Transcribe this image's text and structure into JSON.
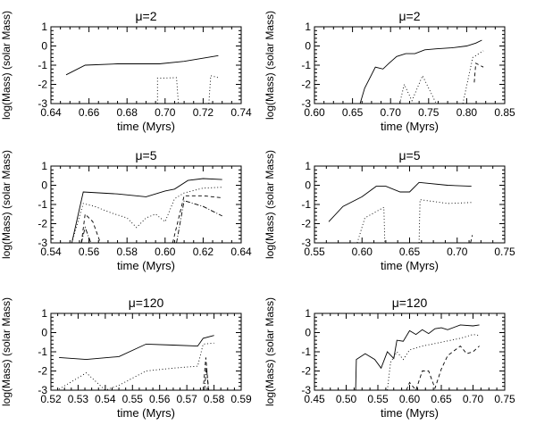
{
  "figure": {
    "background": "#ffffff",
    "line_color": "#000000"
  },
  "chart_data": [
    {
      "type": "line",
      "title": "μ=2",
      "xlabel": "time (Myrs)",
      "ylabel": "log(Mass)  (solar Mass)",
      "xlim": [
        0.64,
        0.74
      ],
      "ylim": [
        -3,
        1
      ],
      "xticks": [
        0.64,
        0.66,
        0.68,
        0.7,
        0.72,
        0.74
      ],
      "xticklabels": [
        "0.64",
        "0.66",
        "0.68",
        "0.70",
        "0.72",
        "0.74"
      ],
      "yticks": [
        -3,
        -2,
        -1,
        0,
        1
      ],
      "yticklabels": [
        "-3",
        "-2",
        "-1",
        "0",
        "1"
      ],
      "series": [
        {
          "name": "solid",
          "dash": "solid",
          "x": [
            0.648,
            0.658,
            0.675,
            0.697,
            0.71,
            0.728
          ],
          "y": [
            -1.5,
            -1.0,
            -0.93,
            -0.93,
            -0.8,
            -0.5
          ]
        },
        {
          "name": "dotted",
          "dash": "dotted",
          "x": [
            0.696,
            0.696,
            0.706,
            0.707
          ],
          "y": [
            -3.0,
            -1.68,
            -1.65,
            -3.0
          ]
        },
        {
          "name": "dotted-2",
          "dash": "dotted",
          "x": [
            0.723,
            0.724,
            0.728
          ],
          "y": [
            -3.0,
            -1.55,
            -1.65
          ]
        }
      ]
    },
    {
      "type": "line",
      "title": "μ=2",
      "xlabel": "time (Myrs)",
      "ylabel": "log(Mass)  (solar Mass)",
      "xlim": [
        0.6,
        0.85
      ],
      "ylim": [
        -3,
        1
      ],
      "xticks": [
        0.6,
        0.65,
        0.7,
        0.75,
        0.8,
        0.85
      ],
      "xticklabels": [
        "0.60",
        "0.65",
        "0.70",
        "0.75",
        "0.80",
        "0.85"
      ],
      "yticks": [
        -3,
        -2,
        -1,
        0,
        1
      ],
      "yticklabels": [
        "-3",
        "-2",
        "-1",
        "0",
        "1"
      ],
      "series": [
        {
          "name": "solid",
          "dash": "solid",
          "x": [
            0.66,
            0.666,
            0.68,
            0.69,
            0.698,
            0.708,
            0.72,
            0.732,
            0.745,
            0.76,
            0.78,
            0.8,
            0.812,
            0.82
          ],
          "y": [
            -3.0,
            -2.2,
            -1.1,
            -1.2,
            -0.9,
            -0.55,
            -0.4,
            -0.4,
            -0.2,
            -0.15,
            -0.1,
            0.0,
            0.15,
            0.3
          ]
        },
        {
          "name": "dotted",
          "dash": "dotted",
          "x": [
            0.712,
            0.718,
            0.728,
            0.742,
            0.76
          ],
          "y": [
            -3.0,
            -2.0,
            -2.85,
            -1.55,
            -3.0
          ]
        },
        {
          "name": "dotted-2",
          "dash": "dotted",
          "x": [
            0.795,
            0.808,
            0.822
          ],
          "y": [
            -3.0,
            -0.6,
            -0.25
          ]
        },
        {
          "name": "dashed",
          "dash": "dashed",
          "x": [
            0.81,
            0.812,
            0.822
          ],
          "y": [
            -1.9,
            -0.9,
            -1.1
          ]
        }
      ]
    },
    {
      "type": "line",
      "title": "μ=5",
      "xlabel": "time (Myrs)",
      "ylabel": "log(Mass)  (solar Mass)",
      "xlim": [
        0.54,
        0.64
      ],
      "ylim": [
        -3,
        1
      ],
      "xticks": [
        0.54,
        0.56,
        0.58,
        0.6,
        0.62,
        0.64
      ],
      "xticklabels": [
        "0.54",
        "0.56",
        "0.58",
        "0.60",
        "0.62",
        "0.64"
      ],
      "yticks": [
        -3,
        -2,
        -1,
        0,
        1
      ],
      "yticklabels": [
        "-3",
        "-2",
        "-1",
        "0",
        "1"
      ],
      "series": [
        {
          "name": "solid",
          "dash": "solid",
          "x": [
            0.551,
            0.557,
            0.575,
            0.59,
            0.6,
            0.605,
            0.612,
            0.62,
            0.63
          ],
          "y": [
            -3.0,
            -0.35,
            -0.45,
            -0.6,
            -0.3,
            -0.2,
            0.25,
            0.35,
            0.3
          ]
        },
        {
          "name": "dotted",
          "dash": "dotted",
          "x": [
            0.551,
            0.557,
            0.563,
            0.572,
            0.58,
            0.585,
            0.59,
            0.595,
            0.6,
            0.605,
            0.61,
            0.62,
            0.63
          ],
          "y": [
            -3.0,
            -0.95,
            -1.1,
            -1.45,
            -1.7,
            -2.2,
            -1.7,
            -1.5,
            -1.9,
            -0.7,
            -0.4,
            -0.15,
            -0.1
          ]
        },
        {
          "name": "dashed",
          "dash": "dashed",
          "x": [
            0.556,
            0.558,
            0.562,
            0.566
          ],
          "y": [
            -3.0,
            -1.5,
            -1.9,
            -3.0
          ]
        },
        {
          "name": "dashed-2",
          "dash": "dashed",
          "x": [
            0.604,
            0.61,
            0.62,
            0.63
          ],
          "y": [
            -3.0,
            -0.55,
            -0.55,
            -0.65
          ]
        },
        {
          "name": "dash-dot",
          "dash": "dash-dot",
          "x": [
            0.556,
            0.558,
            0.561
          ],
          "y": [
            -3.0,
            -2.2,
            -3.0
          ]
        },
        {
          "name": "dash-dot-2",
          "dash": "dash-dot",
          "x": [
            0.606,
            0.61,
            0.62,
            0.63
          ],
          "y": [
            -3.0,
            -0.8,
            -1.1,
            -1.6
          ]
        }
      ]
    },
    {
      "type": "line",
      "title": "μ=5",
      "xlabel": "time (Myrs)",
      "ylabel": "log(Mass)  (solar Mass)",
      "xlim": [
        0.55,
        0.75
      ],
      "ylim": [
        -3,
        1
      ],
      "xticks": [
        0.55,
        0.6,
        0.65,
        0.7,
        0.75
      ],
      "xticklabels": [
        "0.55",
        "0.60",
        "0.65",
        "0.70",
        "0.75"
      ],
      "yticks": [
        -3,
        -2,
        -1,
        0,
        1
      ],
      "yticklabels": [
        "-3",
        "-2",
        "-1",
        "0",
        "1"
      ],
      "series": [
        {
          "name": "solid",
          "dash": "solid",
          "x": [
            0.565,
            0.58,
            0.6,
            0.615,
            0.625,
            0.64,
            0.65,
            0.66,
            0.69,
            0.715
          ],
          "y": [
            -1.9,
            -1.1,
            -0.6,
            -0.05,
            -0.05,
            -0.35,
            -0.35,
            0.15,
            0.0,
            -0.05
          ]
        },
        {
          "name": "dotted",
          "dash": "dotted",
          "x": [
            0.595,
            0.603,
            0.623,
            0.624
          ],
          "y": [
            -3.0,
            -1.7,
            -1.15,
            -3.0
          ]
        },
        {
          "name": "dotted-2",
          "dash": "dotted",
          "x": [
            0.66,
            0.661,
            0.69,
            0.715
          ],
          "y": [
            -3.0,
            -0.75,
            -0.95,
            -0.9
          ]
        },
        {
          "name": "dashed",
          "dash": "dashed",
          "x": [
            0.714,
            0.716
          ],
          "y": [
            -3.0,
            -2.6
          ]
        }
      ]
    },
    {
      "type": "line",
      "title": "μ=120",
      "xlabel": "time (Myrs)",
      "ylabel": "log(Mass)  (solar Mass)",
      "xlim": [
        0.52,
        0.59
      ],
      "ylim": [
        -3,
        1
      ],
      "xticks": [
        0.52,
        0.53,
        0.54,
        0.55,
        0.56,
        0.57,
        0.58,
        0.59
      ],
      "xticklabels": [
        "0.52",
        "0.53",
        "0.54",
        "0.55",
        "0.56",
        "0.57",
        "0.58",
        "0.59"
      ],
      "yticks": [
        -3,
        -2,
        -1,
        0,
        1
      ],
      "yticklabels": [
        "-3",
        "-2",
        "-1",
        "0",
        "1"
      ],
      "series": [
        {
          "name": "solid",
          "dash": "solid",
          "x": [
            0.523,
            0.533,
            0.545,
            0.555,
            0.565,
            0.574,
            0.576,
            0.58
          ],
          "y": [
            -1.3,
            -1.4,
            -1.25,
            -0.6,
            -0.65,
            -0.7,
            -0.3,
            -0.15
          ]
        },
        {
          "name": "dotted",
          "dash": "dotted",
          "x": [
            0.523,
            0.533,
            0.54,
            0.545,
            0.555,
            0.565,
            0.574,
            0.576,
            0.58
          ],
          "y": [
            -2.95,
            -2.1,
            -3.0,
            -2.75,
            -2.0,
            -1.85,
            -1.75,
            -0.6,
            -0.55
          ]
        },
        {
          "name": "dashed",
          "dash": "dashed",
          "x": [
            0.576,
            0.577,
            0.578
          ],
          "y": [
            -3.0,
            -1.3,
            -3.0
          ]
        },
        {
          "name": "dash-dot",
          "dash": "dash-dot",
          "x": [
            0.5765,
            0.5772,
            0.578
          ],
          "y": [
            -3.0,
            -1.8,
            -3.0
          ]
        }
      ]
    },
    {
      "type": "line",
      "title": "μ=120",
      "xlabel": "time (Myrs)",
      "ylabel": "log(Mass)  (solar Mass)",
      "xlim": [
        0.45,
        0.75
      ],
      "ylim": [
        -3,
        1
      ],
      "xticks": [
        0.45,
        0.5,
        0.55,
        0.6,
        0.65,
        0.7,
        0.75
      ],
      "xticklabels": [
        "0.45",
        "0.50",
        "0.55",
        "0.60",
        "0.65",
        "0.70",
        "0.75"
      ],
      "yticks": [
        -3,
        -2,
        -1,
        0,
        1
      ],
      "yticklabels": [
        "-3",
        "-2",
        "-1",
        "0",
        "1"
      ],
      "series": [
        {
          "name": "solid",
          "dash": "solid",
          "x": [
            0.515,
            0.516,
            0.53,
            0.545,
            0.555,
            0.565,
            0.575,
            0.58,
            0.59,
            0.6,
            0.61,
            0.62,
            0.63,
            0.64,
            0.65,
            0.66,
            0.68,
            0.7,
            0.71
          ],
          "y": [
            -3.0,
            -1.4,
            -1.1,
            -1.4,
            -1.85,
            -1.0,
            -1.35,
            -0.4,
            -0.45,
            0.1,
            -0.1,
            0.15,
            -0.05,
            0.2,
            0.25,
            0.15,
            0.4,
            0.35,
            0.4
          ]
        },
        {
          "name": "dotted",
          "dash": "dotted",
          "x": [
            0.565,
            0.57,
            0.58,
            0.59,
            0.6,
            0.62,
            0.65,
            0.68,
            0.7,
            0.71
          ],
          "y": [
            -3.0,
            -1.55,
            -1.0,
            -1.4,
            -0.9,
            -0.7,
            -0.5,
            -0.3,
            -0.1,
            -0.15
          ]
        },
        {
          "name": "dashed",
          "dash": "dashed",
          "x": [
            0.595,
            0.6,
            0.61,
            0.62,
            0.63,
            0.64,
            0.65,
            0.66,
            0.68,
            0.69,
            0.7,
            0.71
          ],
          "y": [
            -3.0,
            -2.6,
            -3.0,
            -2.0,
            -2.0,
            -2.9,
            -1.9,
            -1.2,
            -0.7,
            -1.1,
            -1.0,
            -0.7
          ]
        }
      ]
    }
  ]
}
